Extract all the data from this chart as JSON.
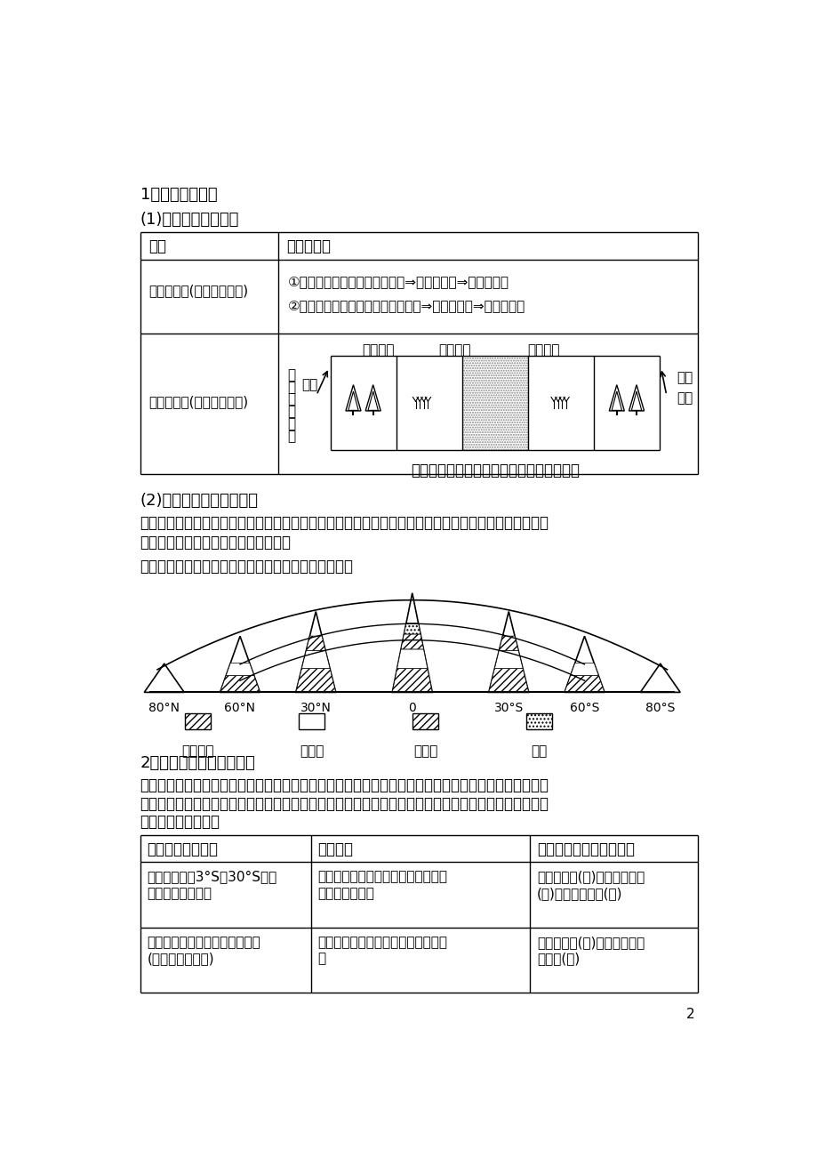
{
  "bg_color": "#ffffff",
  "heading1": "1．地域分异规律",
  "heading1_sub": "(1)水平地域分异规律",
  "table1_col1_header": "规律",
  "table1_col2_header": "分布及说明",
  "row1_col1": "纬度地带性(由赤道到两极)",
  "row1_col2_line1": "①大陆的低纬地区：热带雨林带⇒热带草原带⇒热带荒漠带",
  "row1_col2_line2": "②大陆的高纬地区：亚寒带针叶林带⇒极地苔原带⇒极地冰原带",
  "row2_col1": "经度地带性(从沿海向内陆)",
  "diag_west": "大陆西岸",
  "diag_mid": "大陆内部",
  "diag_east": "大陆东岸",
  "diag_left_vert": [
    "大",
    "西",
    "风",
    "陆",
    "中",
    "纬"
  ],
  "diag_left_ocean": "海洋",
  "diag_right_wind": "季风",
  "diag_right_ocean": "海洋",
  "diag_bottom": "森林带－草原带－荒漠带－草原带－森林带",
  "heading2": "(2)山地垂直地域分异规律",
  "para1": "山地垂直地域分异是山麓到山顶水分和热量状况的差异共同作用的结果，山麓到山顶水热的变化与从低纬",
  "para1b": "到高纬的变化类似，但并不完全一致。",
  "para2": "垂直地域分异与由赤道到两极地域分异规律的相似性：",
  "mountain_labels": [
    "80°N",
    "60°N",
    "30°N",
    "0",
    "30°S",
    "60°S",
    "80°S"
  ],
  "legend_labels": [
    "热带雨林",
    "阔叶林",
    "针叶林",
    "苔原"
  ],
  "heading3": "2．非地带性地域分异现象",
  "para3": "受纬度位置和海陆位置影响，陆地自然带的分布呈现出地带性地域分异现象，但陆地自然条件复杂多变，",
  "para3b": "受地形、洋流及海陆分布等因素影响，陆地自然带的分布在个别地区呈现出非地带性地域分异现象，例证",
  "para3c": "及原因分析见下表：",
  "t2h1": "实际分布的自然带",
  "t2h2": "形成原因",
  "t2h3": "按理想状态分布的自然带",
  "t2r1c1a": "南美大陆西岸3°S～30°S之间",
  "t2r1c1b": "狭长的热带荒漠带",
  "t2r1c2a": "安第斯山脉阻挡海洋水汽的输入；秘",
  "t2r1c2b": "鲁寒流降温减湿",
  "t2r1c3a": "热带雨林带(北)；热带草原带",
  "t2r1c3b": "(中)；热带荒漠带(南)",
  "t2r2c1a": "南美大陆东端形成的温带荒漠带",
  "t2r2c1b": "(巴塔哥尼亚沙漠)",
  "t2r2c2a": "位于西风带控制下的安第斯山的背风",
  "t2r2c2b": "坡",
  "t2r2c3a": "温带草原带(中)；温带落叶阔",
  "t2r2c3b": "叶林带(东)",
  "page_number": "2"
}
